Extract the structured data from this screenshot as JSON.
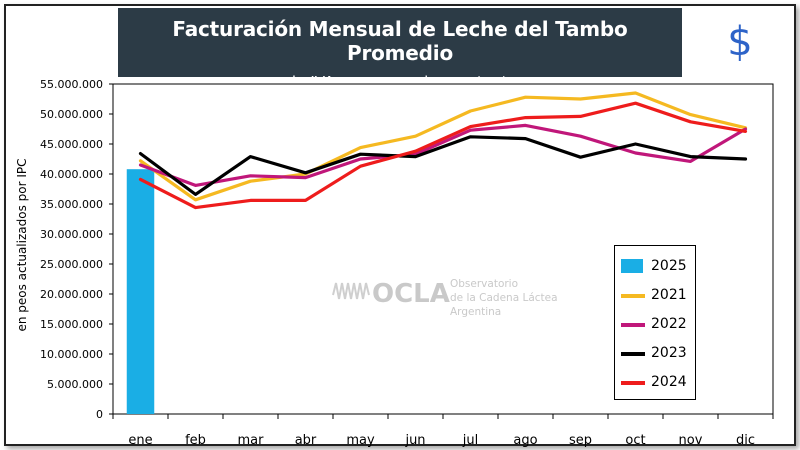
{
  "title": "Facturación Mensual de Leche del Tambo Promedio",
  "subtitle_dash": "-",
  "subtitle": "sin IVA y en moneda constante -",
  "currency_symbol": "$",
  "watermark": {
    "logo_text": "OCLA",
    "line1": "Observatorio",
    "line2": "de la Cadena Láctea",
    "line3": "Argentina"
  },
  "colors": {
    "2025": "#1aaee5",
    "2021": "#f5b921",
    "2022": "#c0177a",
    "2023": "#000000",
    "2024": "#ee1c1c"
  },
  "chart_data": {
    "type": "line",
    "title": "Facturación Mensual de Leche del Tambo Promedio",
    "ylabel": "en peos actualizados por IPC",
    "xlabel": "",
    "ylim": [
      0,
      55000000
    ],
    "ytick_labels": [
      "0",
      "5.000.000",
      "10.000.000",
      "15.000.000",
      "20.000.000",
      "25.000.000",
      "30.000.000",
      "35.000.000",
      "40.000.000",
      "45.000.000",
      "50.000.000",
      "55.000.000"
    ],
    "categories": [
      "ene",
      "feb",
      "mar",
      "abr",
      "may",
      "jun",
      "jul",
      "ago",
      "sep",
      "oct",
      "nov",
      "dic"
    ],
    "bar_series": {
      "name": "2025",
      "values": [
        40800000
      ]
    },
    "series": [
      {
        "name": "2021",
        "values": [
          42200000,
          35700000,
          38800000,
          40000000,
          44400000,
          46300000,
          50500000,
          52800000,
          52500000,
          53500000,
          49900000,
          47700000
        ]
      },
      {
        "name": "2022",
        "values": [
          41500000,
          38100000,
          39700000,
          39400000,
          42500000,
          43300000,
          47300000,
          48100000,
          46300000,
          43500000,
          42100000,
          47500000
        ]
      },
      {
        "name": "2023",
        "values": [
          43400000,
          36600000,
          42900000,
          40200000,
          43300000,
          42900000,
          46200000,
          45900000,
          42800000,
          45000000,
          42900000,
          42500000
        ]
      },
      {
        "name": "2024",
        "values": [
          39100000,
          34400000,
          35600000,
          35600000,
          41300000,
          43800000,
          47900000,
          49400000,
          49600000,
          51800000,
          48700000,
          47100000
        ]
      }
    ],
    "legend": [
      "2025",
      "2021",
      "2022",
      "2023",
      "2024"
    ],
    "legend_position": "bottom-right",
    "grid": false
  }
}
